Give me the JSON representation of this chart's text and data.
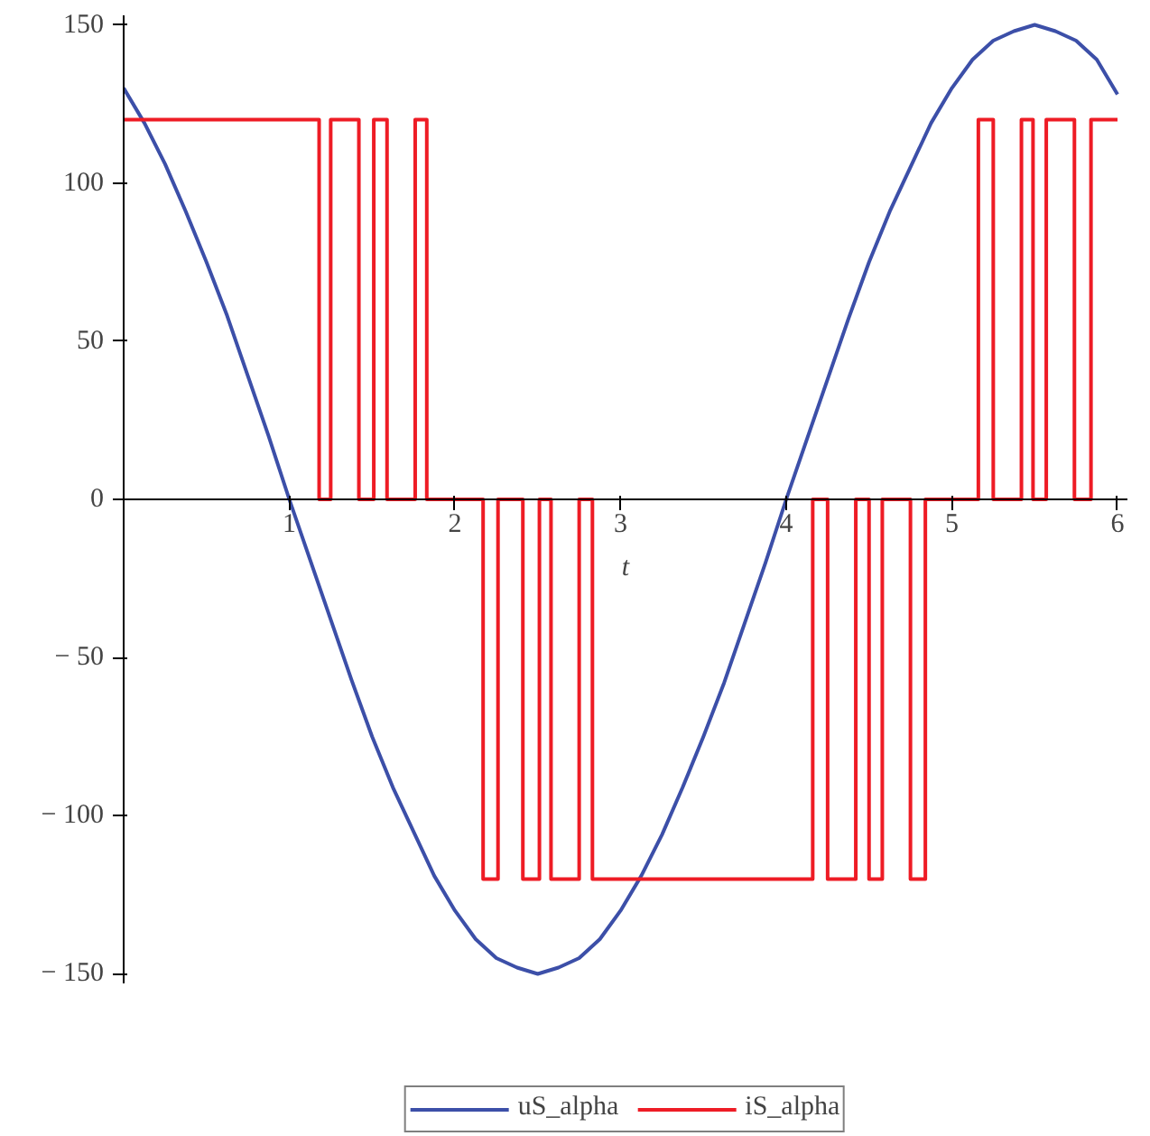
{
  "chart_data": {
    "type": "line",
    "xlabel": "t",
    "xlim": [
      0,
      6.06
    ],
    "ylim": [
      -153,
      153
    ],
    "xticks": [
      1,
      2,
      3,
      4,
      5,
      6
    ],
    "yticks": [
      {
        "value": -150,
        "label": "− 150"
      },
      {
        "value": -100,
        "label": "− 100"
      },
      {
        "value": -50,
        "label": "− 50"
      },
      0,
      50,
      100,
      150
    ],
    "grid": false,
    "legend": "bottom",
    "marker": "none",
    "line_style": "solid",
    "series": [
      {
        "name": "uS_alpha",
        "color": "#3c4fa8",
        "x": [
          0,
          0.125,
          0.25,
          0.375,
          0.5,
          0.625,
          0.75,
          0.875,
          1,
          1.125,
          1.25,
          1.375,
          1.5,
          1.625,
          1.75,
          1.875,
          2,
          2.125,
          2.25,
          2.375,
          2.5,
          2.625,
          2.75,
          2.875,
          3,
          3.125,
          3.25,
          3.375,
          3.5,
          3.625,
          3.75,
          3.875,
          4,
          4.125,
          4.25,
          4.375,
          4.5,
          4.625,
          4.75,
          4.875,
          5,
          5.125,
          5.25,
          5.375,
          5.5,
          5.625,
          5.75,
          5.875,
          6
        ],
        "values": [
          130,
          119,
          106,
          91,
          75,
          58,
          39,
          20,
          0,
          -19,
          -38,
          -57,
          -75,
          -91,
          -105,
          -119,
          -130,
          -139,
          -145,
          -148,
          -150,
          -148,
          -145,
          -139,
          -130,
          -119,
          -106,
          -91,
          -75,
          -58,
          -39,
          -20,
          0,
          19,
          38,
          57,
          75,
          91,
          105,
          119,
          130,
          139,
          145,
          148,
          150,
          148,
          145,
          139,
          128
        ]
      },
      {
        "name": "iS_alpha",
        "color": "#ee1c25",
        "type": "step",
        "x": [
          0,
          1.18,
          1.25,
          1.42,
          1.51,
          1.59,
          1.76,
          1.83,
          2.17,
          2.26,
          2.41,
          2.51,
          2.58,
          2.75,
          2.83,
          4.16,
          4.25,
          4.42,
          4.5,
          4.58,
          4.75,
          4.84,
          5.16,
          5.25,
          5.42,
          5.49,
          5.57,
          5.74,
          5.84,
          6
        ],
        "values": [
          120,
          0,
          120,
          0,
          120,
          0,
          120,
          0,
          -120,
          0,
          -120,
          0,
          -120,
          0,
          -120,
          0,
          -120,
          0,
          -120,
          0,
          -120,
          0,
          120,
          0,
          120,
          0,
          120,
          0,
          120,
          120
        ]
      }
    ]
  }
}
